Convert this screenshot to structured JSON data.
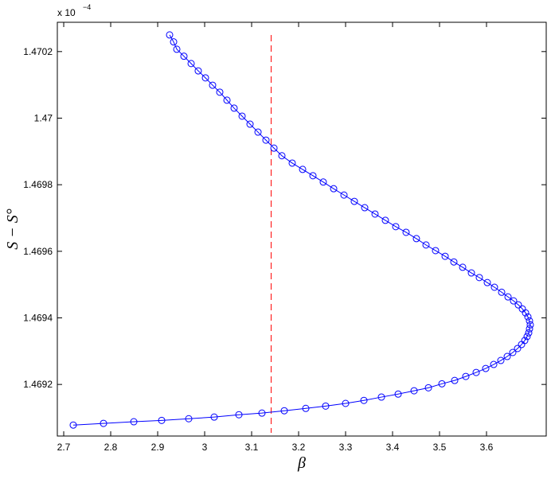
{
  "chart_data": {
    "type": "line",
    "x_label": "β",
    "y_label": "S − S°",
    "y_exponent_base": "x 10",
    "y_exponent_power": "−4",
    "xlim": [
      2.6864,
      3.7271
    ],
    "ylim": [
      1.469045,
      1.470288
    ],
    "xticks": [
      2.7,
      2.8,
      2.9,
      3,
      3.1,
      3.2,
      3.3,
      3.4,
      3.5,
      3.6
    ],
    "yticks": [
      1.4692,
      1.4694,
      1.4696,
      1.4698,
      1.47,
      1.4702
    ],
    "reference_line": {
      "x": 3.1416,
      "color": "#ff0000"
    },
    "series": [
      {
        "color": "#0000ff",
        "x": [
          2.7203,
          2.7847,
          2.8492,
          2.9085,
          2.9661,
          3.0203,
          3.0729,
          3.122,
          3.1695,
          3.2153,
          3.2576,
          3.3,
          3.339,
          3.3763,
          3.4119,
          3.4458,
          3.4763,
          3.5051,
          3.5322,
          3.5559,
          3.578,
          3.5983,
          3.6153,
          3.6305,
          3.6441,
          3.6559,
          3.6661,
          3.6746,
          3.6814,
          3.6864,
          3.6898,
          3.6915,
          3.6932,
          3.6915,
          3.6881,
          3.6831,
          3.6763,
          3.6678,
          3.6576,
          3.6458,
          3.6322,
          3.6169,
          3.6017,
          3.5847,
          3.5678,
          3.5492,
          3.5305,
          3.5119,
          3.4915,
          3.4712,
          3.4508,
          3.4288,
          3.4068,
          3.3847,
          3.3627,
          3.3407,
          3.3186,
          3.2966,
          3.2746,
          3.2525,
          3.2305,
          3.2085,
          3.1864,
          3.1644,
          3.1475,
          3.1305,
          3.1136,
          3.0966,
          3.0797,
          3.0627,
          3.0475,
          3.0322,
          3.0169,
          3.0017,
          2.9864,
          2.9712,
          2.9559,
          2.9407,
          2.9339,
          2.9254
        ],
        "values": [
          1.469078,
          1.469083,
          1.469088,
          1.469092,
          1.469097,
          1.469102,
          1.469109,
          1.469114,
          1.469121,
          1.469128,
          1.469135,
          1.469143,
          1.469152,
          1.469162,
          1.469171,
          1.469181,
          1.46919,
          1.469202,
          1.469212,
          1.469224,
          1.469236,
          1.469248,
          1.46926,
          1.469272,
          1.469284,
          1.469296,
          1.469308,
          1.46932,
          1.469332,
          1.469344,
          1.469355,
          1.469367,
          1.469379,
          1.469391,
          1.469403,
          1.469415,
          1.469427,
          1.469439,
          1.469451,
          1.469463,
          1.469477,
          1.469492,
          1.469506,
          1.469521,
          1.469535,
          1.469552,
          1.469568,
          1.469585,
          1.469602,
          1.469619,
          1.469638,
          1.469657,
          1.469674,
          1.469693,
          1.469712,
          1.469731,
          1.46975,
          1.469769,
          1.469788,
          1.469808,
          1.469827,
          1.469846,
          1.469865,
          1.469887,
          1.46991,
          1.469934,
          1.469958,
          1.469982,
          1.470006,
          1.47003,
          1.470054,
          1.470078,
          1.470099,
          1.470121,
          1.470142,
          1.470164,
          1.470186,
          1.470207,
          1.470229,
          1.47025
        ]
      }
    ]
  }
}
